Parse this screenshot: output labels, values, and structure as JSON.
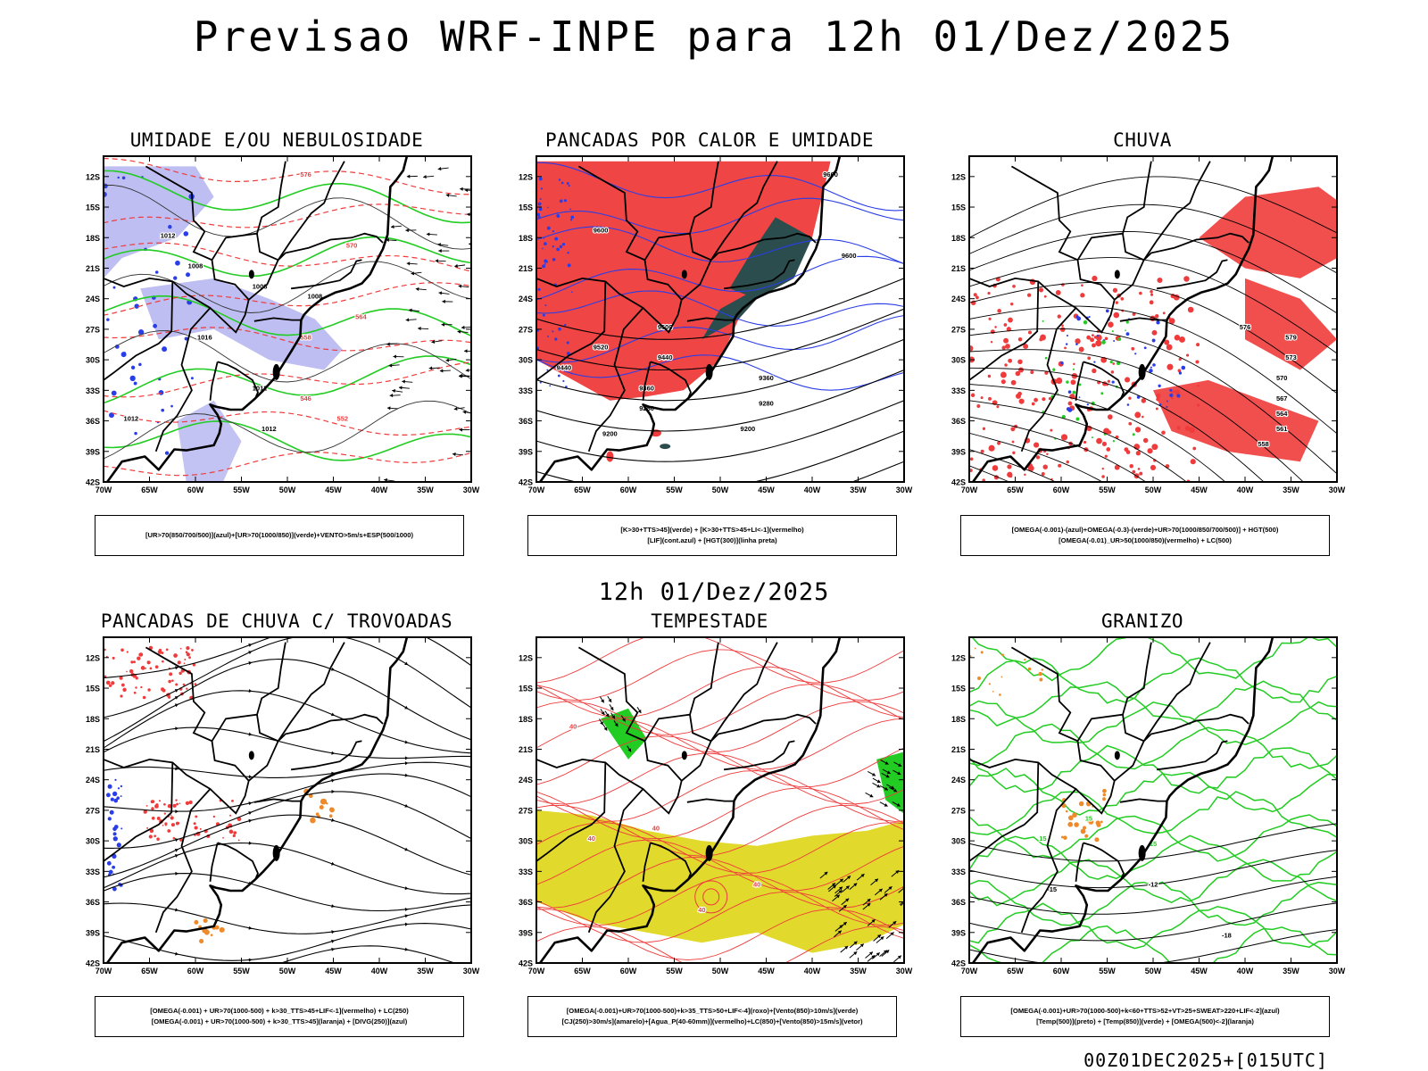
{
  "title": "Previsao WRF-INPE  para 12h 01/Dez/2025",
  "mid_date": "12h 01/Dez/2025",
  "footer": "00Z01DEC2025+[015UTC]",
  "axes": {
    "lat_labels": [
      "12S",
      "15S",
      "18S",
      "21S",
      "24S",
      "27S",
      "30S",
      "33S",
      "36S",
      "39S",
      "42S"
    ],
    "lon_labels": [
      "70W",
      "65W",
      "60W",
      "55W",
      "50W",
      "45W",
      "40W",
      "35W",
      "30W"
    ]
  },
  "colors": {
    "red": "#ef3b3b",
    "blue": "#2a3ee8",
    "lavender": "#a8a8ee",
    "green": "#22cc22",
    "darkteal": "#2b4d4d",
    "yellow": "#e1d92c",
    "orange": "#ef8a2a",
    "black": "#000000"
  },
  "panels": [
    {
      "title": "UMIDADE E/OU NEBULOSIDADE",
      "legend": [
        "[UR>70(850/700/500)](azul)+[UR>70(1000/850)](verde)+VENTO>5m/s+ESP(500/1000)"
      ],
      "contour_labels": [
        "1012",
        "1008",
        "1008",
        "1008",
        "1012",
        "1012",
        "1012",
        "1016",
        "576",
        "570",
        "564",
        "558",
        "552",
        "546"
      ]
    },
    {
      "title": "PANCADAS POR CALOR E UMIDADE",
      "legend": [
        "[K>30+TTS>45](verde)  +  [K>30+TTS>45+LI<-1](vermelho)",
        "[LIF](cont.azul)  +  [HGT(300)](linha preta)"
      ],
      "contour_labels": [
        "9600",
        "9600",
        "9600",
        "9520",
        "9440",
        "9440",
        "9360",
        "9360",
        "9280",
        "9280",
        "9200",
        "9200",
        "9600"
      ]
    },
    {
      "title": "CHUVA",
      "legend": [
        "[OMEGA(-0.001)-(azul)+OMEGA(-0.3)-(verde)+UR>70(1000/850/700/500)]  +  HGT(500)",
        "[OMEGA(-0.01)_UR>50(1000/850)(vermelho)  +  LC(500)"
      ],
      "contour_labels": [
        "579",
        "573",
        "570",
        "567",
        "564",
        "561",
        "558",
        "576"
      ]
    },
    {
      "title": "PANCADAS DE CHUVA C/ TROVOADAS",
      "legend": [
        "[OMEGA(-0.001)  +  UR>70(1000-500)  +  k>30_TTS>45+LIF<-1](vermelho)  +  LC(250)",
        "[OMEGA(-0.001)  +  UR>70(1000-500)  +  k>30_TTS>45](laranja)  +  [DIVG(250)](azul)"
      ],
      "contour_labels": []
    },
    {
      "title": "TEMPESTADE",
      "legend": [
        "[OMEGA(-0.001)+UR>70(1000-500)+k>35_TTS>50+LIF<-4](roxo)+[Vento(850)>10m/s](verde)",
        "[CJ(250)>30m/s](amarelo)+[Agua_P(40-60mm)](vermelho)+LC(850)+[Vento(850)>15m/s](vetor)"
      ],
      "contour_labels": [
        "40",
        "40",
        "40",
        "40",
        "40"
      ]
    },
    {
      "title": "GRANIZO",
      "legend": [
        "[OMEGA(-0.001)+UR>70(1000-500)+k<60+TTS>52+VT>25+SWEAT>220+LIF<-2](azul)",
        "[Temp(500)](preto)  +  [Temp(850)](verde)  +  [OMEGA(500)<-2](laranja)"
      ],
      "contour_labels": [
        "-15",
        "-12",
        "-18",
        "15",
        "15",
        "15"
      ]
    }
  ]
}
